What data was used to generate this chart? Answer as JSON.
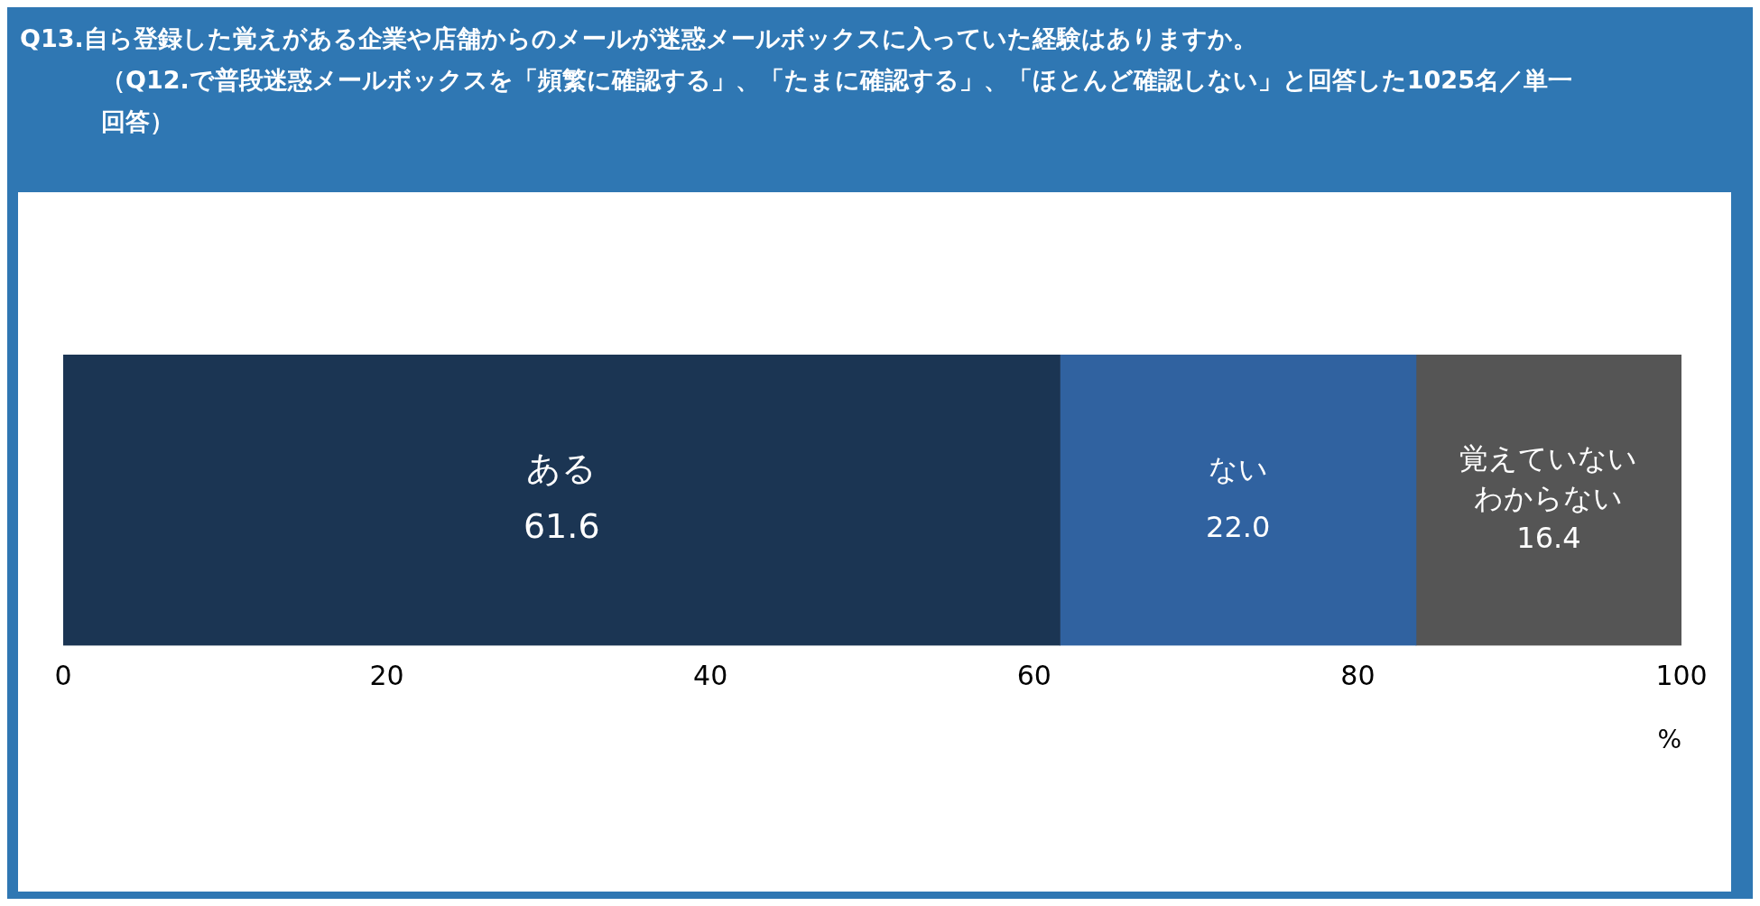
{
  "chart_data": {
    "type": "bar",
    "orientation": "horizontal",
    "stacked": true,
    "title": "Q13.自ら登録した覚えがある企業や店舗からのメールが迷惑メールボックスに入っていた経験はありますか。",
    "subtitle": "（Q12.で普段迷惑メールボックスを「頻繁に確認する」、「たまに確認する」、「ほとんど確認しない」と回答した1025名／単一回答）",
    "xlabel": "%",
    "categories": [
      null
    ],
    "series": [
      {
        "name": "ある",
        "color": "#1b3553",
        "values": [
          61.6
        ],
        "value_labels": [
          "61.6"
        ]
      },
      {
        "name": "ない",
        "color": "#3062a0",
        "values": [
          22.0
        ],
        "value_labels": [
          "22.0"
        ]
      },
      {
        "name": "覚えていないわからない",
        "color": "#555555",
        "values": [
          16.4
        ],
        "value_labels": [
          "16.4"
        ]
      }
    ],
    "xlim": [
      0,
      100
    ],
    "xticks": [
      0,
      20,
      40,
      60,
      80,
      100
    ],
    "tick_labels": "x"
  }
}
